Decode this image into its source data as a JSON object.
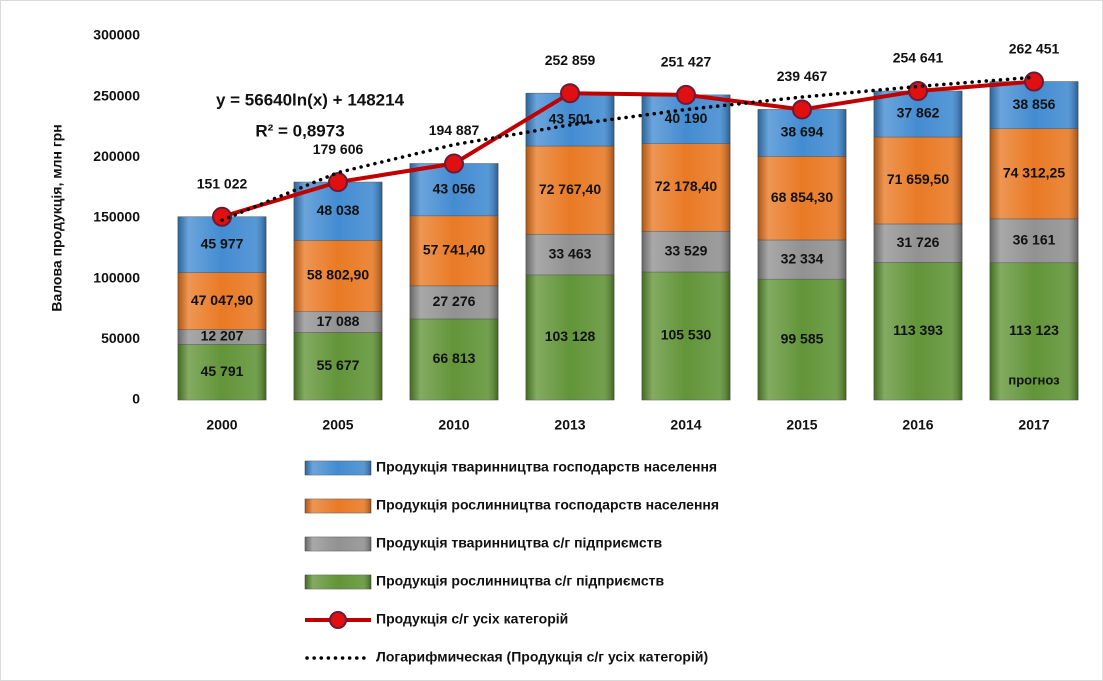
{
  "chart_data": {
    "type": "bar",
    "stacked": true,
    "y_label": "Валова продукція, млн грн",
    "categories": [
      "2000",
      "2005",
      "2010",
      "2013",
      "2014",
      "2015",
      "2016",
      "2017"
    ],
    "ylim": [
      0,
      300000
    ],
    "yticks": [
      0,
      50000,
      100000,
      150000,
      200000,
      250000,
      300000
    ],
    "series": [
      {
        "name": "Продукція рослинництва с/г  підприємств",
        "type": "bar",
        "color": "#5a8f2e",
        "values": [
          45791,
          55677,
          66813,
          103128,
          105530,
          99585,
          113393,
          113123
        ],
        "value_labels": [
          "45 791",
          "55 677",
          "66 813",
          "103 128",
          "105 530",
          "99 585",
          "113 393",
          "113 123"
        ]
      },
      {
        "name": "Продукція тваринництва с/г  підприємств",
        "type": "bar",
        "color": "#8c8c8c",
        "values": [
          12207,
          17088,
          27276,
          33463,
          33529,
          32334,
          31726,
          36161
        ],
        "value_labels": [
          "12 207",
          "17 088",
          "27 276",
          "33 463",
          "33 529",
          "32 334",
          "31 726",
          "36 161"
        ]
      },
      {
        "name": "Продукція рослинництва господарств населення",
        "type": "bar",
        "color": "#e8731a",
        "values": [
          47047.9,
          58802.9,
          57741.4,
          72767.4,
          72178.4,
          68854.3,
          71659.5,
          74312.25
        ],
        "value_labels": [
          "47 047,90",
          "58 802,90",
          "57 741,40",
          "72 767,40",
          "72 178,40",
          "68 854,30",
          "71 659,50",
          "74 312,25"
        ]
      },
      {
        "name": "Продукція тваринництва господарств населення",
        "type": "bar",
        "color": "#3a86cf",
        "values": [
          45977,
          48038,
          43056,
          43501,
          40190,
          38694,
          37862,
          38856
        ],
        "value_labels": [
          "45 977",
          "48 038",
          "43 056",
          "43 501",
          "40 190",
          "38 694",
          "37 862",
          "38 856"
        ]
      },
      {
        "name": "Продукція с/г усіх категорій",
        "type": "line",
        "color": "#c00000",
        "marker_color": "#e01010",
        "values": [
          151022,
          179606,
          194887,
          252859,
          251427,
          239467,
          254641,
          262451
        ],
        "value_labels": [
          "151 022",
          "179 606",
          "194 887",
          "252 859",
          "251 427",
          "239 467",
          "254 641",
          "262 451"
        ]
      },
      {
        "name": "Логарифмическая (Продукція с/г усіх категорій)",
        "type": "line",
        "dash": "dotted",
        "color": "#000000",
        "values": [
          148214,
          187474,
          210440,
          226734,
          239373,
          249700,
          258431,
          265994
        ]
      }
    ],
    "annotations": [
      "y = 56640ln(x) + 148214",
      "R² = 0,8973",
      "прогноз"
    ],
    "legend": "bottom"
  }
}
